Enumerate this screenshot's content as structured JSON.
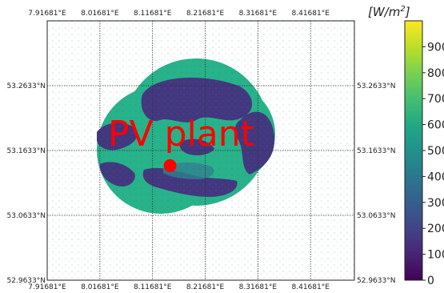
{
  "chart_data": {
    "type": "heatmap",
    "title": "",
    "x_ticks": [
      "7.91681°E",
      "8.01681°E",
      "8.11681°E",
      "8.21681°E",
      "8.31681°E",
      "8.41681°E"
    ],
    "y_ticks": [
      "53.2633°N",
      "53.1633°N",
      "53.0633°N",
      "52.9633°N"
    ],
    "x_range": [
      7.91681,
      8.5
    ],
    "y_range": [
      52.9633,
      53.3633
    ],
    "grid": true,
    "colorbar": {
      "label": "[W/m²]",
      "unit_base": "[W/m",
      "unit_sup": "2",
      "unit_end": "]",
      "min": 0,
      "max": 1000,
      "ticks": [
        0,
        100,
        200,
        300,
        400,
        500,
        600,
        700,
        800,
        900
      ],
      "colormap": "viridis"
    },
    "annotation": {
      "label": "PV plant",
      "lon": 8.15,
      "lat": 53.14
    },
    "cloud_regions": [
      {
        "lon": 8.175,
        "lat": 53.12,
        "radius_deg_lat": 0.06
      },
      {
        "lon": 8.22,
        "lat": 53.17,
        "radius_deg_lat": 0.075
      },
      {
        "lon": 8.27,
        "lat": 53.17,
        "radius_deg_lat": 0.06
      }
    ],
    "field_levels": {
      "dark": 150,
      "bright": 560,
      "mid": 430
    }
  },
  "colors": {
    "annotation": "#ff0000",
    "grid": "#333333",
    "dark": "#43377f",
    "bright": "#28b28a",
    "mid": "#2f7f8e"
  }
}
